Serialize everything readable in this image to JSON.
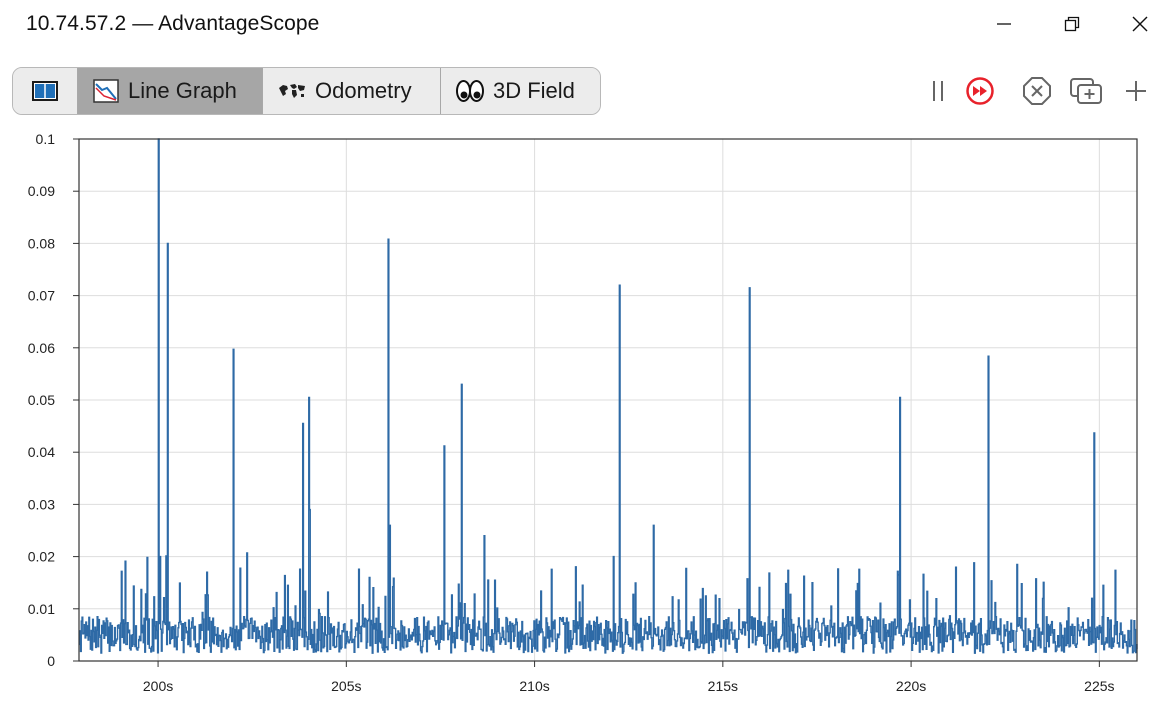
{
  "window": {
    "title": "10.74.57.2 — AdvantageScope"
  },
  "tabs": [
    {
      "label": "",
      "icon": "book-icon",
      "active": false
    },
    {
      "label": "Line Graph",
      "icon": "line-graph-icon",
      "active": true
    },
    {
      "label": "Odometry",
      "icon": "world-map-icon",
      "active": false
    },
    {
      "label": "3D Field",
      "icon": "eyes-icon",
      "active": false
    }
  ],
  "controls": {
    "pause_icon": "pause-icon",
    "live_icon": "fast-forward-icon",
    "close_tab_icon": "close-circle-icon",
    "popup_icon": "new-window-icon",
    "add_icon": "plus-icon",
    "accent_color": "#e8222b"
  },
  "chart_data": {
    "type": "line",
    "series": [
      {
        "color": "#2e6aa6"
      }
    ],
    "yticks": [
      "0",
      "0.01",
      "0.02",
      "0.03",
      "0.04",
      "0.05",
      "0.06",
      "0.07",
      "0.08",
      "0.09",
      "0.1"
    ],
    "ylim": [
      0,
      0.1
    ],
    "xticks": [
      "200s",
      "205s",
      "210s",
      "215s",
      "220s",
      "225s"
    ],
    "xtick_values": [
      200,
      205,
      210,
      215,
      220,
      225
    ],
    "xlim": [
      197.9,
      226.0
    ],
    "grid": true,
    "baseline": {
      "min": 0.0015,
      "max": 0.0085,
      "seed": 7
    },
    "spikes": [
      {
        "x": 200.0,
        "y": 0.1
      },
      {
        "x": 200.05,
        "y": 0.02
      },
      {
        "x": 200.25,
        "y": 0.08
      },
      {
        "x": 201.3,
        "y": 0.017
      },
      {
        "x": 202.0,
        "y": 0.0597
      },
      {
        "x": 202.35,
        "y": 0.0207
      },
      {
        "x": 203.85,
        "y": 0.0455
      },
      {
        "x": 204.0,
        "y": 0.0505
      },
      {
        "x": 204.02,
        "y": 0.029
      },
      {
        "x": 205.6,
        "y": 0.016
      },
      {
        "x": 206.1,
        "y": 0.0808
      },
      {
        "x": 206.15,
        "y": 0.026
      },
      {
        "x": 207.6,
        "y": 0.0412
      },
      {
        "x": 208.05,
        "y": 0.053
      },
      {
        "x": 208.65,
        "y": 0.024
      },
      {
        "x": 212.1,
        "y": 0.02
      },
      {
        "x": 212.25,
        "y": 0.072
      },
      {
        "x": 213.15,
        "y": 0.026
      },
      {
        "x": 213.15,
        "y": 0.0135
      },
      {
        "x": 215.7,
        "y": 0.0715
      },
      {
        "x": 219.7,
        "y": 0.0505
      },
      {
        "x": 219.65,
        "y": 0.0165
      },
      {
        "x": 222.05,
        "y": 0.0584
      },
      {
        "x": 222.8,
        "y": 0.0185
      },
      {
        "x": 224.85,
        "y": 0.0437
      },
      {
        "x": 225.1,
        "y": 0.0145
      },
      {
        "x": 224.8,
        "y": 0.012
      }
    ]
  }
}
